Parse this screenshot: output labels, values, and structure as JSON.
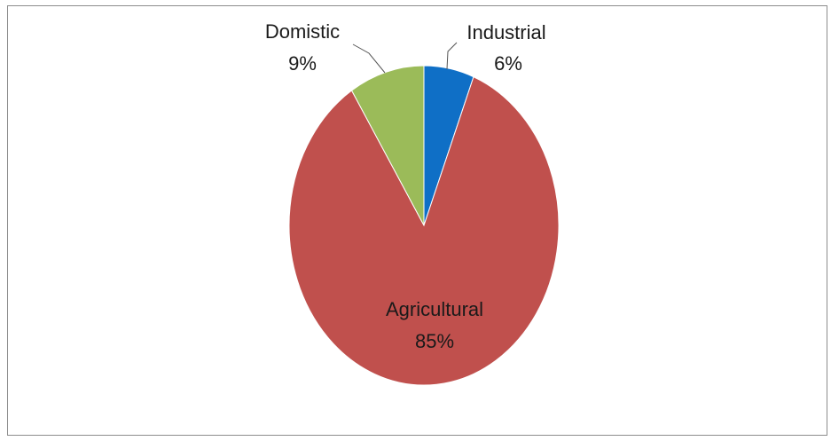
{
  "chart_data": {
    "type": "pie",
    "slices": [
      {
        "name": "Industrial",
        "label": "Industrial",
        "pct_label": "6%",
        "value": 6,
        "color": "#0f6fc6"
      },
      {
        "name": "Agricultural",
        "label": "Agricultural",
        "pct_label": "85%",
        "value": 85,
        "color": "#c0504d"
      },
      {
        "name": "Domistic",
        "label": "Domistic",
        "pct_label": "9%",
        "value": 9,
        "color": "#9bbb59"
      }
    ],
    "title": "",
    "legend": "none",
    "data_labels": "outside-and-inside"
  }
}
